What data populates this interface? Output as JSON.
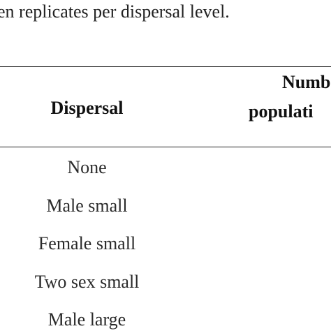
{
  "caption": "en replicates per dispersal level.",
  "table": {
    "headers": {
      "dispersal": "Dispersal",
      "number_line1": "Numb",
      "number_line2": "populati"
    },
    "rows": [
      "None",
      "Male small",
      "Female small",
      "Two sex small",
      "Male large"
    ]
  }
}
